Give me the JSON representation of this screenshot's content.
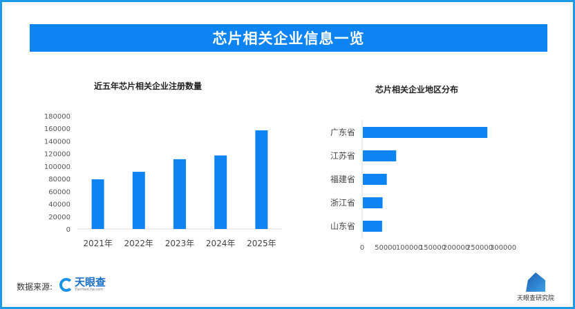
{
  "header": {
    "title": "芯片相关企业信息一览"
  },
  "chart_data": [
    {
      "type": "bar",
      "title": "近五年芯片相关企业注册数量",
      "categories": [
        "2021年",
        "2022年",
        "2023年",
        "2024年",
        "2025年"
      ],
      "values": [
        79000,
        91000,
        111000,
        117000,
        157000
      ],
      "ylim": [
        0,
        180000
      ],
      "yticks": [
        0,
        20000,
        40000,
        60000,
        80000,
        100000,
        120000,
        140000,
        160000,
        180000
      ],
      "color": "#0d84f2",
      "grid": false
    },
    {
      "type": "bar",
      "orientation": "horizontal",
      "title": "芯片相关企业地区分布",
      "categories": [
        "广东省",
        "江苏省",
        "福建省",
        "浙江省",
        "山东省"
      ],
      "values": [
        265000,
        71000,
        51000,
        42000,
        41000
      ],
      "xlim": [
        0,
        300000
      ],
      "xticks": [
        0,
        50000,
        100000,
        150000,
        200000,
        250000,
        300000
      ],
      "color": "#0d84f2",
      "grid": false
    }
  ],
  "footer": {
    "source_label": "数据来源:",
    "source_logo": "天眼查",
    "source_logo_sub": "TianYanCha.com",
    "institute": "天眼查研究院"
  }
}
